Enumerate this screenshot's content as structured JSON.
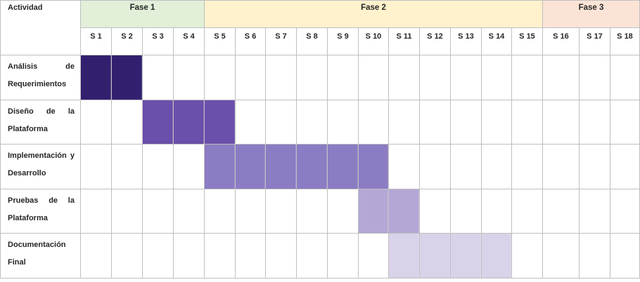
{
  "chart_data": {
    "type": "gantt",
    "header_label": "Actividad",
    "phases": [
      {
        "name": "Fase 1",
        "start_week": 1,
        "end_week": 4,
        "color": "#e2efd9"
      },
      {
        "name": "Fase 2",
        "start_week": 5,
        "end_week": 15,
        "color": "#fff2cc"
      },
      {
        "name": "Fase 3",
        "start_week": 16,
        "end_week": 18,
        "color": "#fbe4d5"
      }
    ],
    "weeks": [
      "S 1",
      "S 2",
      "S 3",
      "S 4",
      "S 5",
      "S 6",
      "S 7",
      "S 8",
      "S 9",
      "S 10",
      "S 11",
      "S 12",
      "S 13",
      "S 14",
      "S 15",
      "S 16",
      "S 17",
      "S 18"
    ],
    "tasks": [
      {
        "name": "Análisis de Requerimientos",
        "start_week": 1,
        "end_week": 2,
        "color": "#32206f"
      },
      {
        "name": "Diseño de la Plataforma",
        "start_week": 3,
        "end_week": 5,
        "color": "#6a4fab"
      },
      {
        "name": "Implementación y Desarrollo",
        "start_week": 5,
        "end_week": 10,
        "color": "#8b7cc3"
      },
      {
        "name": "Pruebas de la Plataforma",
        "start_week": 10,
        "end_week": 11,
        "color": "#b4a7d6"
      },
      {
        "name": "Documentación Final",
        "start_week": 11,
        "end_week": 14,
        "color": "#d9d2e9"
      }
    ]
  }
}
